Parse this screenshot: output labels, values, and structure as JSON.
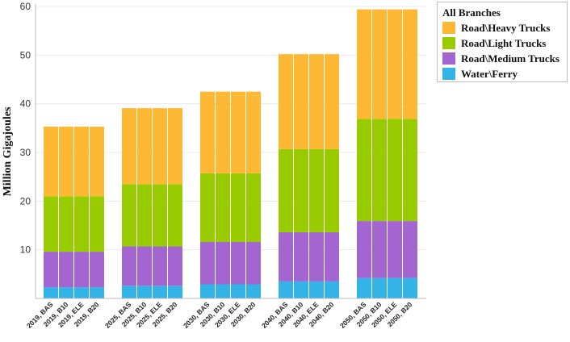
{
  "chart_data": {
    "type": "bar",
    "stacked": true,
    "ylabel": "Million Gigajoules",
    "ylim": [
      0,
      60
    ],
    "yticks": [
      10,
      20,
      30,
      40,
      50,
      60
    ],
    "categories": [
      "2019, BAS",
      "2019, B10",
      "2019, ELE",
      "2019, B20",
      "2025, BAS",
      "2025, B10",
      "2025, ELE",
      "2025, B20",
      "2030, BAS",
      "2030, B10",
      "2030, ELE",
      "2030, B20",
      "2040, BAS",
      "2040, B10",
      "2040, ELE",
      "2040, B20",
      "2050, BAS",
      "2050, B10",
      "2050, ELE",
      "2050, B20"
    ],
    "legend_title": "All Branches",
    "legend_position": "top-right",
    "series": [
      {
        "name": "Water\\Ferry",
        "color": "#33b3e6",
        "values": [
          2.3,
          2.3,
          2.3,
          2.3,
          2.6,
          2.6,
          2.6,
          2.6,
          2.9,
          2.9,
          2.9,
          2.9,
          3.5,
          3.5,
          3.5,
          3.5,
          4.2,
          4.2,
          4.2,
          4.2
        ]
      },
      {
        "name": "Road\\Medium Trucks",
        "color": "#a366d1",
        "values": [
          7.3,
          7.3,
          7.3,
          7.3,
          8.1,
          8.1,
          8.1,
          8.1,
          8.7,
          8.7,
          8.7,
          8.7,
          10.1,
          10.1,
          10.1,
          10.1,
          11.7,
          11.7,
          11.7,
          11.7
        ]
      },
      {
        "name": "Road\\Light Trucks",
        "color": "#99cc00",
        "values": [
          11.4,
          11.4,
          11.4,
          11.4,
          12.8,
          12.8,
          12.8,
          12.8,
          14.1,
          14.1,
          14.1,
          14.1,
          17.1,
          17.1,
          17.1,
          17.1,
          21.0,
          21.0,
          21.0,
          21.0
        ]
      },
      {
        "name": "Road\\Heavy Trucks",
        "color": "#ffb833",
        "values": [
          14.3,
          14.3,
          14.3,
          14.3,
          15.6,
          15.6,
          15.6,
          15.6,
          16.8,
          16.8,
          16.8,
          16.8,
          19.5,
          19.5,
          19.5,
          19.5,
          22.5,
          22.5,
          22.5,
          22.5
        ]
      }
    ]
  }
}
